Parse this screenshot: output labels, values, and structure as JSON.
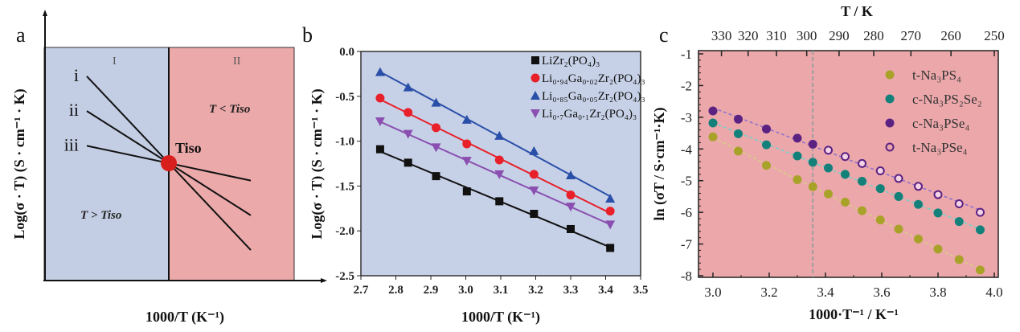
{
  "chart_data": [
    {
      "panel": "a",
      "type": "line",
      "title": "",
      "xlabel": "1000/T (K⁻¹)",
      "ylabel": "Log(σ · T) (S · cm⁻¹ · K)",
      "regions": [
        {
          "label": "I",
          "text": "T > Tiso",
          "color": "#c3cde3"
        },
        {
          "label": "II",
          "text": "T < Tiso",
          "color": "#eba9aa"
        }
      ],
      "point_label": "Tiso",
      "point_color": "#d91e1e",
      "lines": [
        {
          "name": "i",
          "slope_rel": -1.0
        },
        {
          "name": "ii",
          "slope_rel": -0.6
        },
        {
          "name": "iii",
          "slope_rel": -0.2
        }
      ]
    },
    {
      "panel": "b",
      "type": "scatter",
      "xlabel": "1000/T (K⁻¹)",
      "ylabel": "Log(σ · T) (S · cm⁻¹ · K)",
      "xlim": [
        2.7,
        3.5
      ],
      "ylim": [
        -2.5,
        0.0
      ],
      "xticks": [
        "2.7",
        "2.8",
        "2.9",
        "3.0",
        "3.1",
        "3.2",
        "3.3",
        "3.4",
        "3.5"
      ],
      "yticks": [
        "0.0",
        "-0.5",
        "-1.0",
        "-1.5",
        "-2.0",
        "-2.5"
      ],
      "background": "#c6d1e7",
      "legend_position": "top-right",
      "x": [
        2.755,
        2.835,
        2.915,
        3.003,
        3.096,
        3.195,
        3.3,
        3.413
      ],
      "series": [
        {
          "name": "LiZr₂(PO₄)₃",
          "marker": "square",
          "color": "#111111",
          "values": [
            -1.09,
            -1.24,
            -1.39,
            -1.56,
            -1.67,
            -1.81,
            -1.98,
            -2.19
          ]
        },
        {
          "name": "Li₀.₉₄Ga₀.₀₂Zr₂(PO₄)₃",
          "marker": "circle",
          "color": "#e8202a",
          "values": [
            -0.52,
            -0.68,
            -0.85,
            -1.03,
            -1.21,
            -1.37,
            -1.6,
            -1.78
          ]
        },
        {
          "name": "Li₀.₈₅Ga₀.₀₅Zr₂(PO₄)₃",
          "marker": "triangle-up",
          "color": "#2a4fa8",
          "values": [
            -0.23,
            -0.4,
            -0.57,
            -0.76,
            -0.94,
            -1.11,
            -1.38,
            -1.64
          ]
        },
        {
          "name": "Li₀.₇Ga₀.₁Zr₂(PO₄)₃",
          "marker": "triangle-down",
          "color": "#8a4fb0",
          "values": [
            -0.78,
            -0.92,
            -1.07,
            -1.22,
            -1.37,
            -1.55,
            -1.73,
            -1.93
          ]
        }
      ]
    },
    {
      "panel": "c",
      "type": "scatter",
      "xlabel": "1000·T⁻¹ / K⁻¹",
      "ylabel": "ln (σT / S·cm⁻¹·K)",
      "top_xlabel": "T / K",
      "xlim": [
        2.95,
        4.01
      ],
      "ylim": [
        -8,
        -1
      ],
      "xticks": [
        "3.0",
        "3.2",
        "3.4",
        "3.6",
        "3.8",
        "4.0"
      ],
      "yticks": [
        "-1",
        "-2",
        "-3",
        "-4",
        "-5",
        "-6",
        "-7",
        "-8"
      ],
      "top_ticks": [
        "330",
        "320",
        "310",
        "300",
        "290",
        "280",
        "270",
        "260",
        "250"
      ],
      "background": "#eba7aa",
      "vline_x": 3.355,
      "legend_position": "top-right",
      "series": [
        {
          "name": "t-Na₃PS₄",
          "color": "#a8a229",
          "filled": true,
          "x": [
            3.0,
            3.09,
            3.19,
            3.3,
            3.355,
            3.41,
            3.47,
            3.53,
            3.595,
            3.66,
            3.73,
            3.8,
            3.875,
            3.95
          ],
          "values": [
            -3.62,
            -4.07,
            -4.52,
            -4.97,
            -5.19,
            -5.42,
            -5.68,
            -5.95,
            -6.24,
            -6.53,
            -6.84,
            -7.16,
            -7.49,
            -7.82
          ]
        },
        {
          "name": "c-Na₃PS₂Se₂",
          "color": "#13807a",
          "filled": true,
          "x": [
            3.0,
            3.09,
            3.19,
            3.3,
            3.355,
            3.41,
            3.47,
            3.53,
            3.595,
            3.66,
            3.73,
            3.8,
            3.875,
            3.95
          ],
          "values": [
            -3.18,
            -3.52,
            -3.87,
            -4.22,
            -4.42,
            -4.6,
            -4.8,
            -5.02,
            -5.25,
            -5.5,
            -5.75,
            -6.02,
            -6.29,
            -6.55
          ]
        },
        {
          "name": "c-Na₃PSe₄",
          "color": "#5b2282",
          "filled": true,
          "x": [
            3.0,
            3.09,
            3.19,
            3.3,
            3.355
          ],
          "values": [
            -2.8,
            -3.06,
            -3.37,
            -3.66,
            -3.85
          ]
        },
        {
          "name": "t-Na₃PSe₄",
          "color": "#5b2282",
          "filled": false,
          "x": [
            3.41,
            3.47,
            3.53,
            3.595,
            3.66,
            3.73,
            3.8,
            3.875,
            3.95
          ],
          "values": [
            -4.04,
            -4.24,
            -4.46,
            -4.69,
            -4.93,
            -5.18,
            -5.44,
            -5.73,
            -6.0
          ]
        }
      ]
    }
  ]
}
